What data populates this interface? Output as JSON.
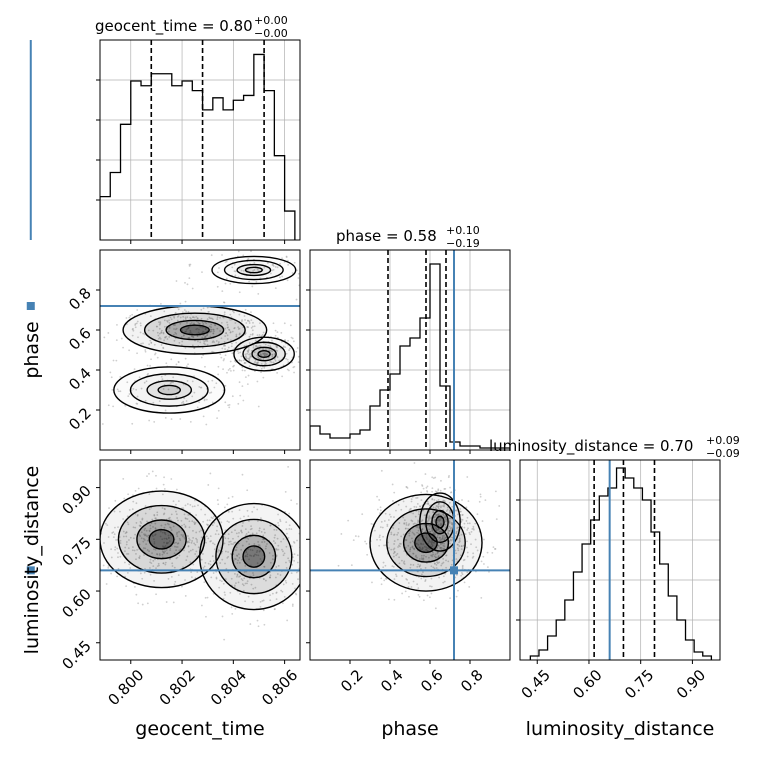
{
  "colors": {
    "truth": "#4682b4",
    "line": "#000000",
    "grid": "#b0b0b0",
    "scatter": "#a0a0a0",
    "density": "#000000"
  },
  "chart_data": [
    {
      "id": "hist_geocent_time",
      "type": "histogram",
      "title_main": "geocent_time = 0.80",
      "title_sup": "+0.00",
      "title_sub": "−0.00",
      "x_range": [
        0.7988,
        0.8066
      ],
      "bins_start": 0.7988,
      "bin_width": 0.0004,
      "counts": [
        0.18,
        0.28,
        0.48,
        0.66,
        0.64,
        0.69,
        0.69,
        0.64,
        0.66,
        0.62,
        0.54,
        0.59,
        0.54,
        0.58,
        0.6,
        0.77,
        0.62,
        0.35,
        0.12
      ],
      "y_max": 0.83,
      "quantiles": [
        0.8008,
        0.8028,
        0.8052
      ],
      "truth": 0.7961
    },
    {
      "id": "hist_phase",
      "type": "histogram",
      "title_main": "phase = 0.58",
      "title_sup": "+0.10",
      "title_sub": "−0.19",
      "x_range": [
        0.0,
        1.0
      ],
      "bins_start": 0.0,
      "bin_width": 0.05,
      "counts": [
        0.12,
        0.08,
        0.06,
        0.06,
        0.08,
        0.1,
        0.22,
        0.3,
        0.38,
        0.52,
        0.56,
        0.66,
        0.93,
        0.32,
        0.04,
        0.02,
        0.02,
        0.01,
        0.01,
        0.01
      ],
      "y_max": 1.0,
      "quantiles": [
        0.39,
        0.58,
        0.68
      ],
      "truth": 0.72
    },
    {
      "id": "hist_luminosity_distance",
      "type": "histogram",
      "title_main": "luminosity_distance = 0.70",
      "title_sup": "+0.09",
      "title_sub": "−0.09",
      "x_range": [
        0.4,
        0.98
      ],
      "bins_start": 0.43,
      "bin_width": 0.025,
      "counts": [
        0.02,
        0.05,
        0.12,
        0.2,
        0.3,
        0.44,
        0.58,
        0.7,
        0.82,
        0.86,
        0.96,
        0.91,
        0.86,
        0.8,
        0.64,
        0.48,
        0.32,
        0.2,
        0.1,
        0.04,
        0.02
      ],
      "y_max": 1.0,
      "quantiles": [
        0.615,
        0.7,
        0.79
      ],
      "truth": 0.66
    },
    {
      "id": "scatter_geocent_time_phase",
      "type": "scatter",
      "x_range": [
        0.7988,
        0.8066
      ],
      "y_range": [
        0.0,
        1.0
      ],
      "truth": [
        0.7961,
        0.72
      ],
      "modes": [
        {
          "x": 0.8025,
          "y": 0.6,
          "sx": 0.0014,
          "sy": 0.06,
          "w": 1.0
        },
        {
          "x": 0.8052,
          "y": 0.48,
          "sx": 0.0007,
          "sy": 0.05,
          "w": 0.6
        },
        {
          "x": 0.8015,
          "y": 0.3,
          "sx": 0.0015,
          "sy": 0.08,
          "w": 0.3
        },
        {
          "x": 0.8048,
          "y": 0.9,
          "sx": 0.0012,
          "sy": 0.05,
          "w": 0.2
        }
      ]
    },
    {
      "id": "scatter_geocent_time_luminosity_distance",
      "type": "scatter",
      "x_range": [
        0.7988,
        0.8066
      ],
      "y_range": [
        0.4,
        0.98
      ],
      "truth": [
        0.7961,
        0.66
      ],
      "modes": [
        {
          "x": 0.8012,
          "y": 0.75,
          "sx": 0.0012,
          "sy": 0.07,
          "w": 1.0
        },
        {
          "x": 0.8048,
          "y": 0.7,
          "sx": 0.0011,
          "sy": 0.08,
          "w": 0.9
        }
      ]
    },
    {
      "id": "scatter_phase_luminosity_distance",
      "type": "scatter",
      "x_range": [
        0.0,
        1.0
      ],
      "y_range": [
        0.4,
        0.98
      ],
      "truth": [
        0.72,
        0.66
      ],
      "modes": [
        {
          "x": 0.58,
          "y": 0.74,
          "sx": 0.14,
          "sy": 0.07,
          "w": 1.0
        },
        {
          "x": 0.65,
          "y": 0.8,
          "sx": 0.06,
          "sy": 0.05,
          "w": 0.6
        }
      ]
    }
  ],
  "axes": {
    "x": {
      "geocent_time": {
        "label": "geocent_time",
        "ticks": [
          0.8,
          0.802,
          0.804,
          0.806
        ],
        "tick_labels": [
          "0.800",
          "0.802",
          "0.804",
          "0.806"
        ]
      },
      "phase": {
        "label": "phase",
        "ticks": [
          0.2,
          0.4,
          0.6,
          0.8
        ],
        "tick_labels": [
          "0.2",
          "0.4",
          "0.6",
          "0.8"
        ]
      },
      "luminosity_distance": {
        "label": "luminosity_distance",
        "ticks": [
          0.45,
          0.6,
          0.75,
          0.9
        ],
        "tick_labels": [
          "0.45",
          "0.60",
          "0.75",
          "0.90"
        ]
      }
    },
    "y": {
      "phase": {
        "label": "phase",
        "ticks": [
          0.2,
          0.4,
          0.6,
          0.8
        ],
        "tick_labels": [
          "0.2",
          "0.4",
          "0.6",
          "0.8"
        ]
      },
      "luminosity_distance": {
        "label": "luminosity_distance",
        "ticks": [
          0.45,
          0.6,
          0.75,
          0.9
        ],
        "tick_labels": [
          "0.45",
          "0.60",
          "0.75",
          "0.90"
        ]
      }
    }
  }
}
